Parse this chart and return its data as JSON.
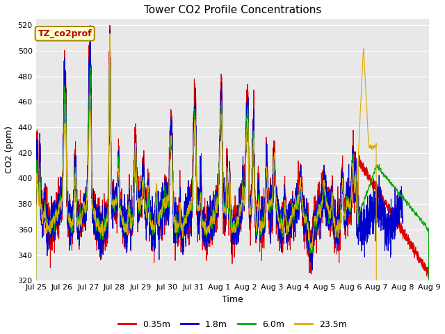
{
  "title": "Tower CO2 Profile Concentrations",
  "xlabel": "Time",
  "ylabel": "CO2 (ppm)",
  "ylim": [
    320,
    525
  ],
  "yticks": [
    320,
    340,
    360,
    380,
    400,
    420,
    440,
    460,
    480,
    500,
    520
  ],
  "annotation_text": "TZ_co2prof",
  "annotation_color": "#bb0000",
  "annotation_bg": "#ffffcc",
  "annotation_border": "#aa8800",
  "series": [
    {
      "label": "0.35m",
      "color": "#dd0000",
      "lw": 0.8
    },
    {
      "label": "1.8m",
      "color": "#0000cc",
      "lw": 0.8
    },
    {
      "label": "6.0m",
      "color": "#00aa00",
      "lw": 0.8
    },
    {
      "label": "23.5m",
      "color": "#ddaa00",
      "lw": 0.8
    }
  ],
  "x_tick_labels": [
    "Jul 25",
    "Jul 26",
    "Jul 27",
    "Jul 28",
    "Jul 29",
    "Jul 30",
    "Jul 31",
    "Aug 1",
    "Aug 2",
    "Aug 3",
    "Aug 4",
    "Aug 5",
    "Aug 6",
    "Aug 7",
    "Aug 8",
    "Aug 9"
  ],
  "bg_color": "#e8e8e8",
  "fig_color": "#ffffff"
}
